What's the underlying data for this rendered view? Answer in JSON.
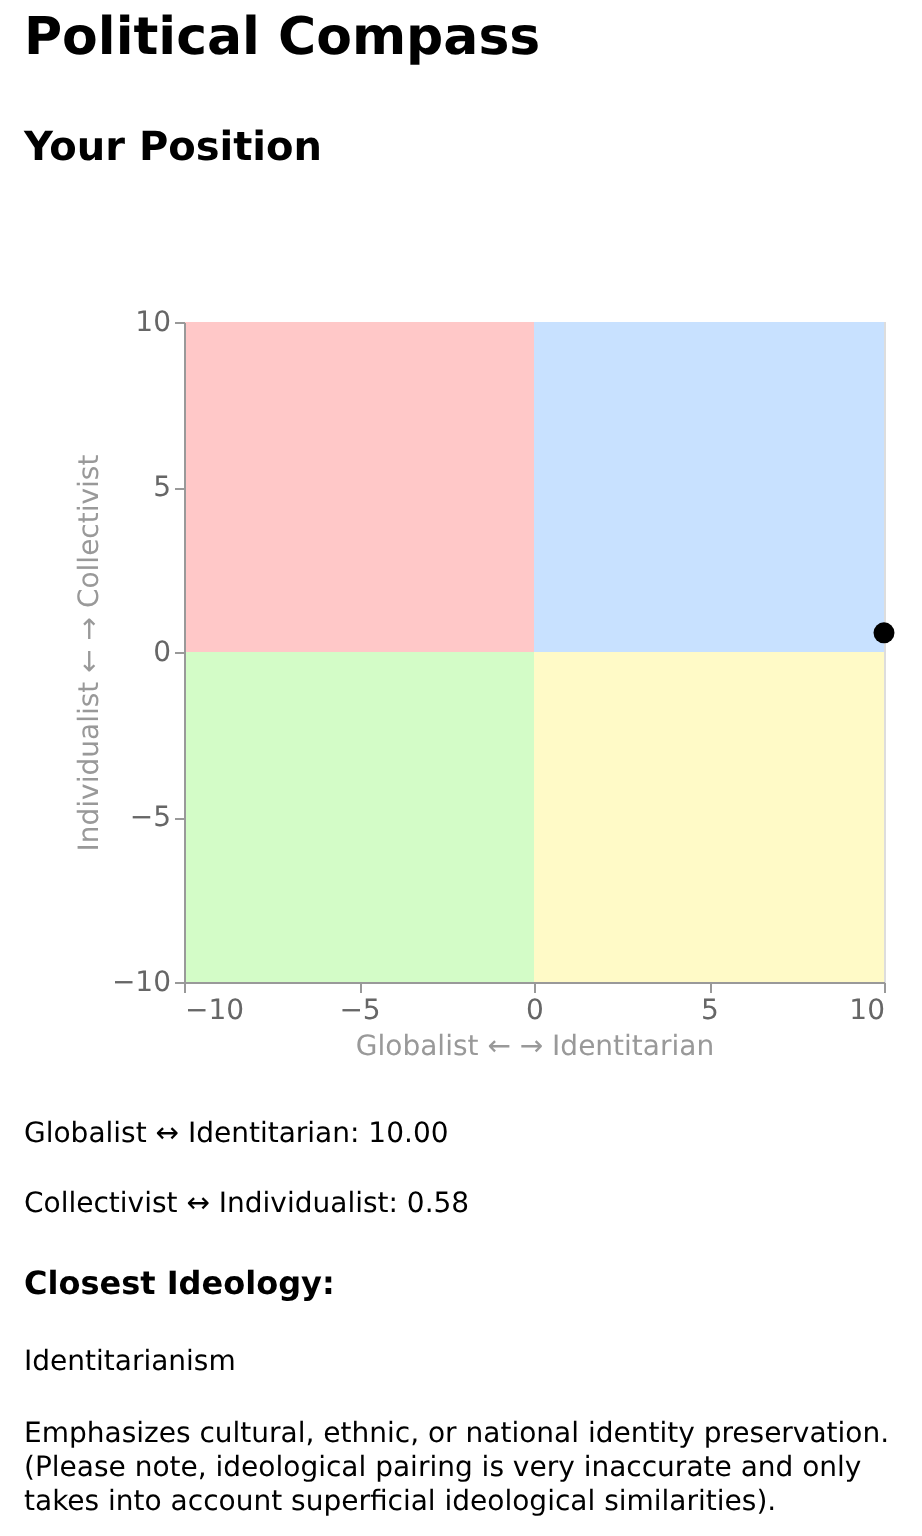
{
  "chart_data": {
    "type": "scatter",
    "title": "Political Compass",
    "subtitle": "Your Position",
    "xlabel": "Globalist ← → Identitarian",
    "ylabel": "Individualist ← → Collectivist",
    "x": [
      10
    ],
    "series": [
      {
        "color": "#000000",
        "values": [
          0.58
        ]
      }
    ],
    "xlim": [
      -10,
      10
    ],
    "ylim": [
      -10,
      10
    ],
    "xticks": [
      -10,
      -5,
      0,
      5,
      10
    ],
    "yticks": [
      -10,
      -5,
      0,
      5,
      10
    ],
    "grid": false,
    "marker": "circle",
    "annotations": [
      "Globalist ↔ Identitarian: 10.00",
      "Collectivist ↔ Individualist: 0.58",
      "Closest Ideology:",
      "Identitarianism",
      "Emphasizes cultural, ethnic, or national identity preservation. (Please note, ideological pairing is very inaccurate and only takes into account superficial ideological similarities)."
    ]
  }
}
